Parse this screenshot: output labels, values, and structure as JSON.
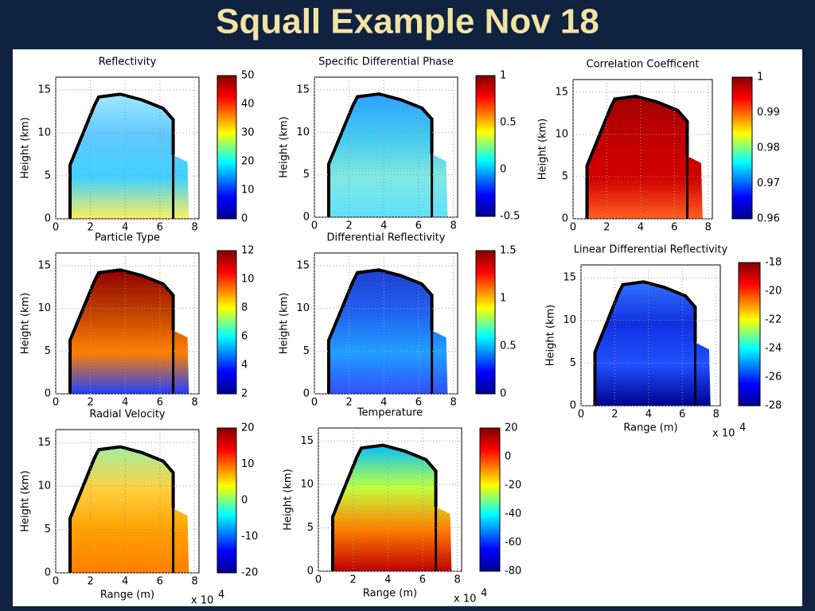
{
  "title": "Squall Example Nov 18",
  "panels": [
    {
      "title": "Reflectivity",
      "y_label": "Height (km)",
      "y_ticks": [
        "0",
        "5",
        "10",
        "15"
      ],
      "x_ticks": [
        "0",
        "2",
        "4",
        "6",
        "8"
      ],
      "colorbar_ticks": [
        "50",
        "40",
        "30",
        "20",
        "10",
        "0"
      ]
    },
    {
      "title": "Specific Differential Phase",
      "y_label": "Height (km)",
      "y_ticks": [
        "0",
        "5",
        "10",
        "15"
      ],
      "x_ticks": [
        "0",
        "2",
        "4",
        "6",
        "8"
      ],
      "colorbar_ticks": [
        "1",
        "0.5",
        "0",
        "-0.5"
      ]
    },
    {
      "title": "Correlation Coefficent",
      "y_label": "Height (km)",
      "y_ticks": [
        "0",
        "5",
        "10",
        "15"
      ],
      "x_ticks": [
        "0",
        "2",
        "4",
        "6",
        "8"
      ],
      "colorbar_ticks": [
        "1",
        "0.99",
        "0.98",
        "0.97",
        "0.96"
      ]
    },
    {
      "title": "Particle Type",
      "y_label": "Height (km)",
      "y_ticks": [
        "0",
        "5",
        "10",
        "15"
      ],
      "x_ticks": [
        "0",
        "2",
        "4",
        "6",
        "8"
      ],
      "colorbar_ticks": [
        "12",
        "10",
        "8",
        "6",
        "4",
        "2"
      ]
    },
    {
      "title": "Differential Reflectivity",
      "y_label": "Height (km)",
      "y_ticks": [
        "0",
        "5",
        "10",
        "15"
      ],
      "x_ticks": [
        "0",
        "2",
        "4",
        "6",
        "8"
      ],
      "colorbar_ticks": [
        "1.5",
        "1",
        "0.5",
        "0"
      ]
    },
    {
      "title": "Linear Differential Reflectivity",
      "y_label": "Height (km)",
      "x_label": "Range (m)",
      "x_scale": "x 10",
      "x_scale_exp": "4",
      "y_ticks": [
        "0",
        "5",
        "10",
        "15"
      ],
      "x_ticks": [
        "0",
        "2",
        "4",
        "6",
        "8"
      ],
      "colorbar_ticks": [
        "-18",
        "-20",
        "-22",
        "-24",
        "-26",
        "-28"
      ]
    },
    {
      "title": "Radial Velocity",
      "y_label": "Height (km)",
      "x_label": "Range (m)",
      "x_scale": "x 10",
      "x_scale_exp": "4",
      "y_ticks": [
        "0",
        "5",
        "10",
        "15"
      ],
      "x_ticks": [
        "0",
        "2",
        "4",
        "6",
        "8"
      ],
      "colorbar_ticks": [
        "20",
        "10",
        "0",
        "-10",
        "-20"
      ]
    },
    {
      "title": "Temperature",
      "y_label": "Height (km)",
      "x_label": "Range (m)",
      "x_scale": "x 10",
      "x_scale_exp": "4",
      "y_ticks": [
        "0",
        "5",
        "10",
        "15"
      ],
      "x_ticks": [
        "0",
        "2",
        "4",
        "6",
        "8"
      ],
      "colorbar_ticks": [
        "20",
        "0",
        "-20",
        "-40",
        "-60",
        "-80"
      ]
    }
  ]
}
